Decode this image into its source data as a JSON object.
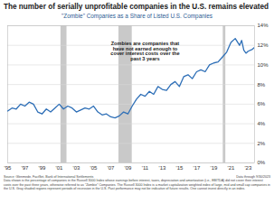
{
  "chart_data": {
    "type": "line",
    "title": "The number of serially unprofitable companies in the U.S. remains elevated",
    "subtitle": "\"Zombie\" Companies as a Share of Listed U.S. Companies",
    "annotation": "Zombies are companies that have not earned enough to cover interest costs over the past 3 years",
    "source": "Source: Glenmede, FactSet, Bank of International Settlements",
    "data_through": "Data through 9/30/2023",
    "note": "Data shown is the percentage of companies in the Russell 3000 Index whose earnings before interest, taxes, depreciation and amortization (i.e., EBITDA) did not cover their interest costs over the past three years, otherwise referred to as \"Zombie\" Companies. The Russell 3000 Index is a market capitalization weighted index of large, mid and small cap companies in the U.S. Gray shaded regions represent periods of recession in the U.S. Past performance may not be indicative of future results. One cannot invest directly in an index.",
    "x": [
      1995,
      1995.5,
      1996,
      1996.5,
      1997,
      1997.5,
      1998,
      1998.5,
      1999,
      1999.5,
      2000,
      2000.5,
      2001,
      2001.5,
      2002,
      2002.5,
      2003,
      2003.5,
      2004,
      2004.5,
      2005,
      2005.5,
      2006,
      2006.5,
      2007,
      2007.5,
      2008,
      2008.5,
      2009,
      2009.5,
      2010,
      2010.5,
      2011,
      2011.5,
      2012,
      2012.5,
      2013,
      2013.5,
      2014,
      2014.5,
      2015,
      2015.5,
      2016,
      2016.5,
      2017,
      2017.5,
      2018,
      2018.5,
      2019,
      2019.5,
      2020,
      2020.5,
      2021,
      2021.5,
      2022,
      2022.25,
      2022.5,
      2022.75,
      2023,
      2023.5,
      2023.75
    ],
    "series": [
      {
        "name": "\"Zombie\" Companies as a Share of Listed U.S. Companies",
        "color": "#2e6fb7",
        "values": [
          5.3,
          5.6,
          5.5,
          6.0,
          5.8,
          6.2,
          6.0,
          5.2,
          5.0,
          5.5,
          5.2,
          5.6,
          6.0,
          5.5,
          5.8,
          5.6,
          5.2,
          5.4,
          5.6,
          5.5,
          5.8,
          5.2,
          4.9,
          5.0,
          4.7,
          4.6,
          4.8,
          5.2,
          5.0,
          5.8,
          6.5,
          7.0,
          6.8,
          7.3,
          7.0,
          7.8,
          7.5,
          7.4,
          8.0,
          8.3,
          7.8,
          8.8,
          9.0,
          8.6,
          9.3,
          9.5,
          9.3,
          10.0,
          10.2,
          10.3,
          10.8,
          11.3,
          12.3,
          12.7,
          12.0,
          12.5,
          11.5,
          11.2,
          11.4,
          11.6,
          11.8
        ]
      }
    ],
    "recessions": [
      [
        2001.2,
        2001.9
      ],
      [
        2007.95,
        2009.5
      ],
      [
        2020.1,
        2020.4
      ]
    ],
    "xlim": [
      1995,
      2023.75
    ],
    "xticks": [
      {
        "value": 1995,
        "label": "'95"
      },
      {
        "value": 1997,
        "label": "'97"
      },
      {
        "value": 1999,
        "label": "'99"
      },
      {
        "value": 2001,
        "label": "'01"
      },
      {
        "value": 2003,
        "label": "'03"
      },
      {
        "value": 2005,
        "label": "'05"
      },
      {
        "value": 2007,
        "label": "'07"
      },
      {
        "value": 2009,
        "label": "'09"
      },
      {
        "value": 2011,
        "label": "'11"
      },
      {
        "value": 2013,
        "label": "'13"
      },
      {
        "value": 2015,
        "label": "'15"
      },
      {
        "value": 2017,
        "label": "'17"
      },
      {
        "value": 2019,
        "label": "'19"
      },
      {
        "value": 2021,
        "label": "'21"
      },
      {
        "value": 2023,
        "label": "'23"
      }
    ],
    "ylim": [
      0,
      14
    ],
    "yticks": [
      {
        "value": 0,
        "label": "0%"
      },
      {
        "value": 2,
        "label": "2%"
      },
      {
        "value": 4,
        "label": "4%"
      },
      {
        "value": 6,
        "label": "6%"
      },
      {
        "value": 8,
        "label": "8%"
      },
      {
        "value": 10,
        "label": "10%"
      },
      {
        "value": 12,
        "label": "12%"
      },
      {
        "value": 14,
        "label": "14%"
      }
    ],
    "grid": true
  }
}
